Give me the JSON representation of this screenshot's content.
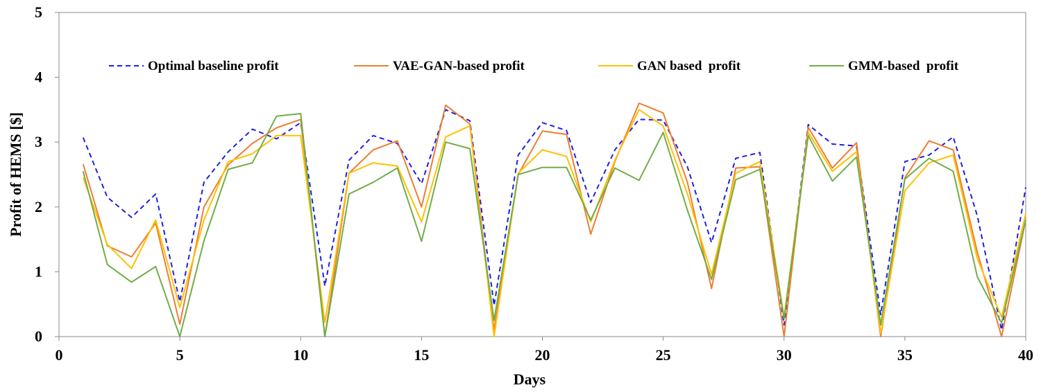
{
  "chart_data": {
    "type": "line",
    "title": "",
    "xlabel": "Days",
    "ylabel": "Profit of HEMS [$]",
    "xlim": [
      0,
      40
    ],
    "ylim": [
      0,
      5
    ],
    "xticks": [
      0,
      5,
      10,
      15,
      20,
      25,
      30,
      35,
      40
    ],
    "yticks": [
      0,
      1,
      2,
      3,
      4,
      5
    ],
    "grid": false,
    "legend_position": "top",
    "x": [
      1,
      2,
      3,
      4,
      5,
      6,
      7,
      8,
      9,
      10,
      11,
      12,
      13,
      14,
      15,
      16,
      17,
      18,
      19,
      20,
      21,
      22,
      23,
      24,
      25,
      26,
      27,
      28,
      29,
      30,
      31,
      32,
      33,
      34,
      35,
      36,
      37,
      38,
      39,
      40
    ],
    "series": [
      {
        "name": "Optimal baseline profit",
        "color": "#1f1fe0",
        "dash": "dashed",
        "values": [
          3.07,
          2.15,
          1.84,
          2.2,
          0.54,
          2.38,
          2.85,
          3.2,
          3.05,
          3.3,
          0.78,
          2.72,
          3.1,
          2.98,
          2.36,
          3.5,
          3.33,
          0.48,
          2.8,
          3.3,
          3.18,
          2.07,
          2.88,
          3.35,
          3.34,
          2.62,
          1.45,
          2.75,
          2.84,
          0.18,
          3.27,
          2.97,
          2.94,
          0.34,
          2.7,
          2.8,
          3.08,
          1.86,
          0.1,
          2.3
        ]
      },
      {
        "name": "VAE-GAN-based profit",
        "color": "#ed7d31",
        "dash": "solid",
        "values": [
          2.66,
          1.4,
          1.23,
          1.75,
          0.19,
          2.0,
          2.65,
          2.98,
          3.22,
          3.35,
          0.0,
          2.52,
          2.88,
          3.02,
          2.0,
          3.57,
          3.28,
          0.1,
          2.5,
          3.17,
          3.12,
          1.58,
          2.7,
          3.6,
          3.45,
          2.38,
          0.74,
          2.6,
          2.62,
          0.0,
          3.23,
          2.6,
          2.99,
          0.0,
          2.45,
          3.02,
          2.88,
          1.3,
          0.0,
          1.8
        ]
      },
      {
        "name": "GAN based  profit",
        "color": "#ffc000",
        "dash": "solid",
        "values": [
          2.45,
          1.42,
          1.05,
          1.8,
          0.45,
          1.8,
          2.7,
          2.82,
          3.1,
          3.1,
          0.22,
          2.52,
          2.68,
          2.63,
          1.77,
          3.08,
          3.25,
          0.0,
          2.52,
          2.88,
          2.78,
          1.77,
          2.72,
          3.5,
          3.25,
          2.2,
          0.96,
          2.52,
          2.7,
          0.3,
          3.15,
          2.55,
          2.85,
          0.05,
          2.25,
          2.68,
          2.8,
          1.2,
          0.3,
          1.9
        ]
      },
      {
        "name": "GMM-based  profit",
        "color": "#70ad47",
        "dash": "solid",
        "values": [
          2.55,
          1.11,
          0.84,
          1.08,
          0.0,
          1.48,
          2.58,
          2.68,
          3.4,
          3.44,
          0.0,
          2.2,
          2.38,
          2.6,
          1.47,
          3.0,
          2.9,
          0.25,
          2.5,
          2.61,
          2.61,
          1.8,
          2.6,
          2.41,
          3.15,
          1.95,
          0.88,
          2.42,
          2.58,
          0.27,
          3.1,
          2.4,
          2.77,
          0.18,
          2.43,
          2.75,
          2.55,
          0.92,
          0.21,
          1.8
        ]
      }
    ]
  }
}
